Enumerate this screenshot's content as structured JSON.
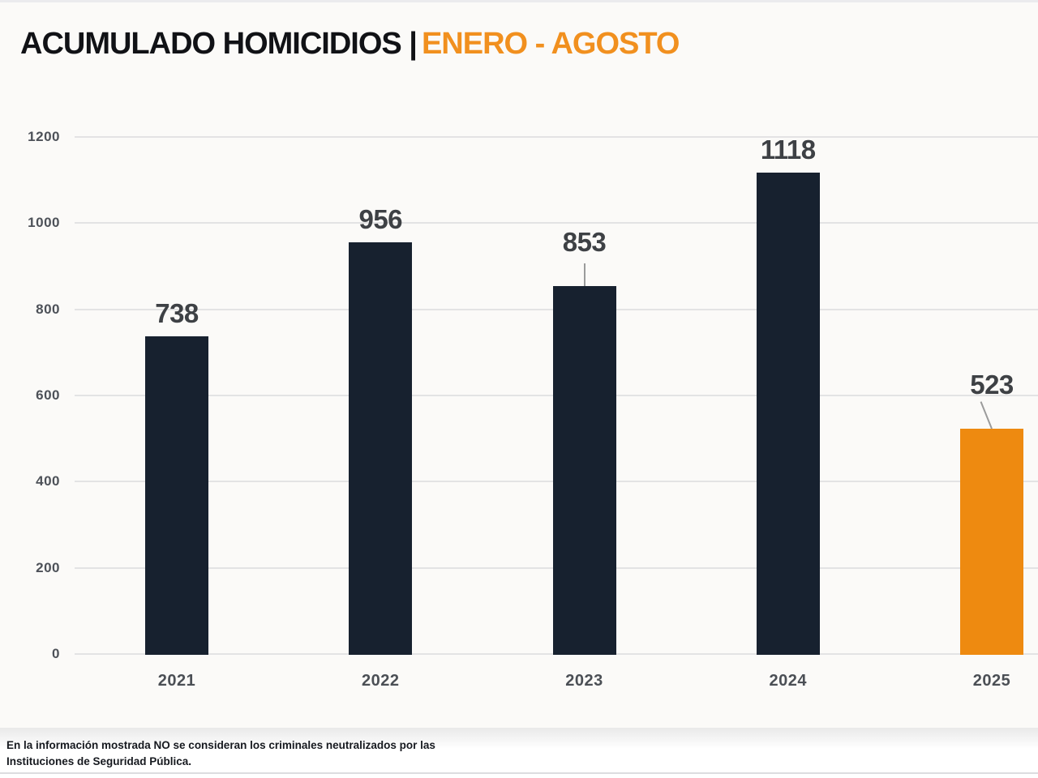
{
  "page": {
    "background": "#fbfaf8"
  },
  "header": {
    "title_main": "ACUMULADO HOMICIDIOS |",
    "title_period": "ENERO - AGOSTO",
    "title_main_color": "#111216",
    "title_period_color": "#f1901f"
  },
  "chart_data": {
    "type": "bar",
    "title": "ACUMULADO HOMICIDIOS | ENERO - AGOSTO",
    "categories": [
      "2021",
      "2022",
      "2023",
      "2024",
      "2025"
    ],
    "values": [
      738,
      956,
      853,
      1118,
      523
    ],
    "value_labels": [
      "738",
      "956",
      "853",
      "1118",
      "523"
    ],
    "callouts": [
      false,
      false,
      true,
      false,
      true
    ],
    "callout_styles": [
      null,
      null,
      "straight",
      null,
      "tilted"
    ],
    "xlabel": "",
    "ylabel": "",
    "ylim": [
      0,
      1200
    ],
    "yticks": [
      0,
      200,
      400,
      600,
      800,
      1000,
      1200
    ],
    "grid": true,
    "legend": "none",
    "bar_color": "#17212f",
    "highlight_index": 4,
    "highlight_color": "#ee8a10",
    "gridline_color": "#e3e3e4",
    "value_label_color": "#3e4145",
    "tick_label_color": "#4d5158"
  },
  "footer": {
    "lines": [
      "En la información mostrada NO se consideran los criminales neutralizados por las",
      "Instituciones de Seguridad Pública."
    ]
  }
}
